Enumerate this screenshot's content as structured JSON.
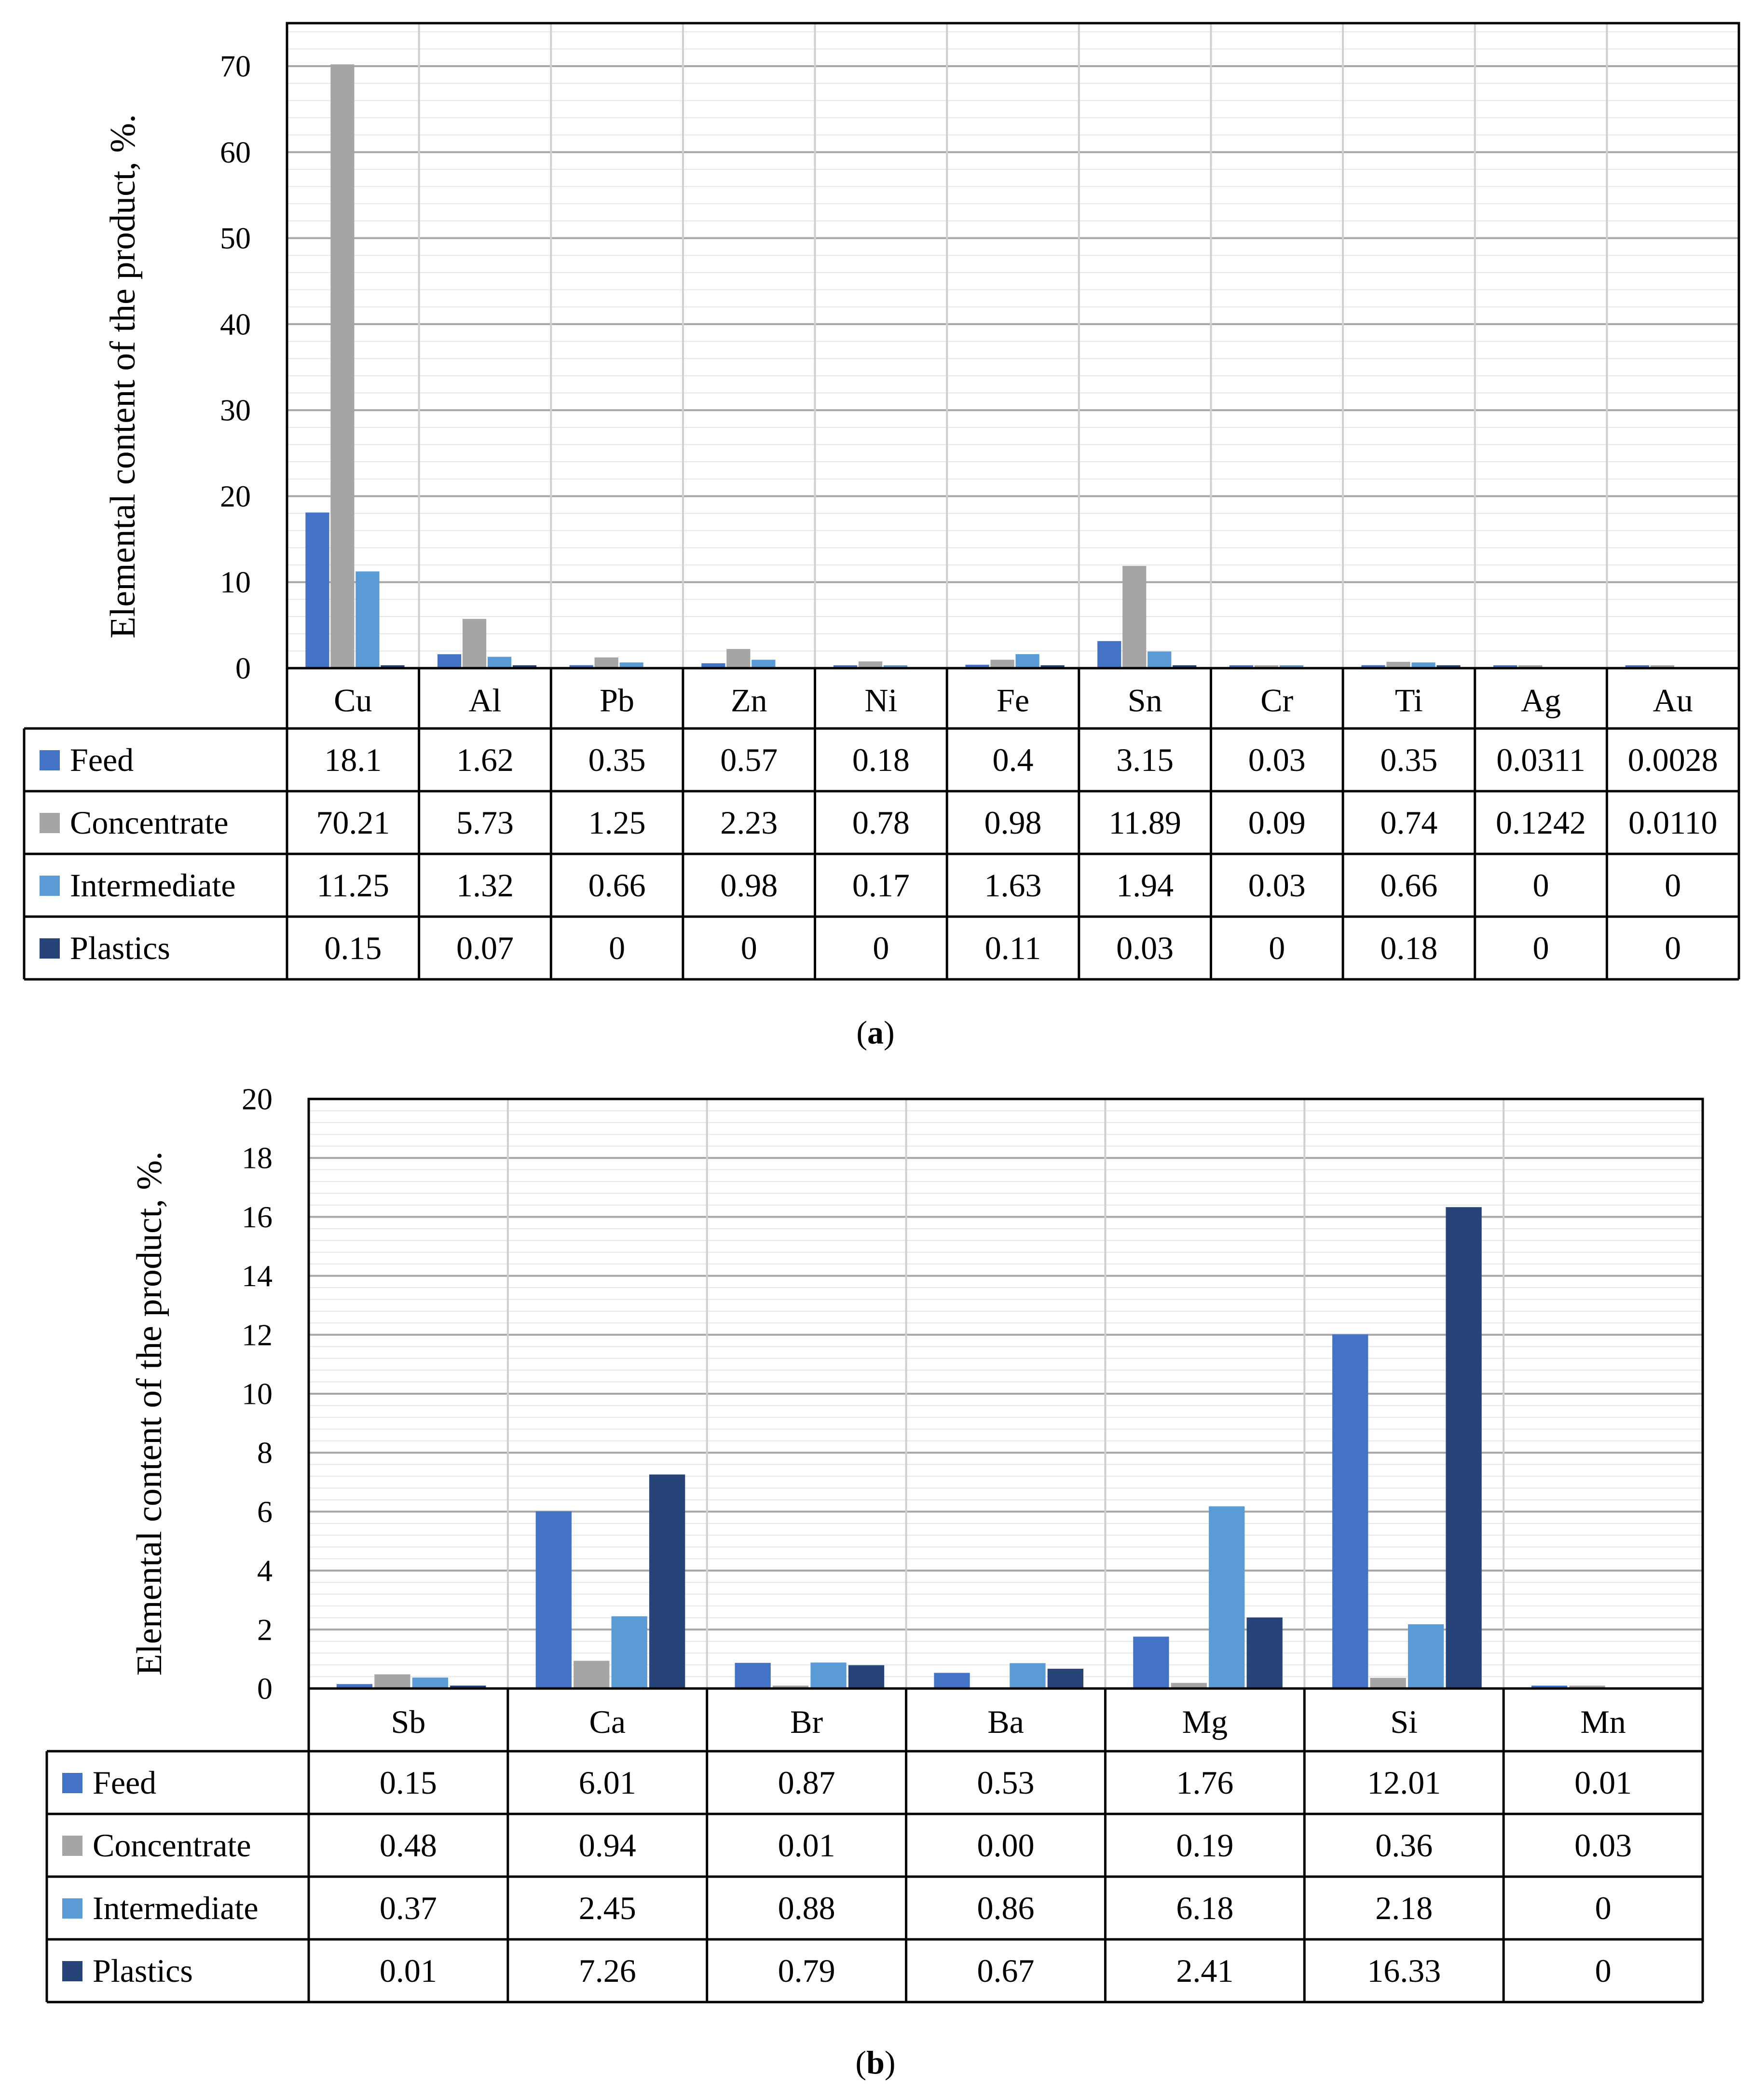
{
  "chart_data": [
    {
      "type": "bar",
      "caption_label": "a",
      "ylabel": "Elemental content of the product, %.",
      "ylim": [
        0,
        75
      ],
      "yticks": [
        0,
        10,
        20,
        30,
        40,
        50,
        60,
        70
      ],
      "grid": true,
      "legend": "data-table",
      "categories": [
        "Cu",
        "Al",
        "Pb",
        "Zn",
        "Ni",
        "Fe",
        "Sn",
        "Cr",
        "Ti",
        "Ag",
        "Au"
      ],
      "series": [
        {
          "name": "Feed",
          "color": "#4472C4",
          "values": [
            18.1,
            1.62,
            0.35,
            0.57,
            0.18,
            0.4,
            3.15,
            0.03,
            0.35,
            0.0311,
            0.0028
          ],
          "labels": [
            "18.1",
            "1.62",
            "0.35",
            "0.57",
            "0.18",
            "0.4",
            "3.15",
            "0.03",
            "0.35",
            "0.0311",
            "0.0028"
          ]
        },
        {
          "name": "Concentrate",
          "color": "#A5A5A5",
          "values": [
            70.21,
            5.73,
            1.25,
            2.23,
            0.78,
            0.98,
            11.89,
            0.09,
            0.74,
            0.1242,
            0.011
          ],
          "labels": [
            "70.21",
            "5.73",
            "1.25",
            "2.23",
            "0.78",
            "0.98",
            "11.89",
            "0.09",
            "0.74",
            "0.1242",
            "0.0110"
          ]
        },
        {
          "name": "Intermediate",
          "color": "#5B9BD5",
          "values": [
            11.25,
            1.32,
            0.66,
            0.98,
            0.17,
            1.63,
            1.94,
            0.03,
            0.66,
            0,
            0
          ],
          "labels": [
            "11.25",
            "1.32",
            "0.66",
            "0.98",
            "0.17",
            "1.63",
            "1.94",
            "0.03",
            "0.66",
            "0",
            "0"
          ]
        },
        {
          "name": "Plastics",
          "color": "#264478",
          "values": [
            0.15,
            0.07,
            0,
            0,
            0,
            0.11,
            0.03,
            0,
            0.18,
            0,
            0
          ],
          "labels": [
            "0.15",
            "0.07",
            "0",
            "0",
            "0",
            "0.11",
            "0.03",
            "0",
            "0.18",
            "0",
            "0"
          ]
        }
      ]
    },
    {
      "type": "bar",
      "caption_label": "b",
      "ylabel": "Elemental content of the product, %.",
      "ylim": [
        0,
        20
      ],
      "yticks": [
        0,
        2,
        4,
        6,
        8,
        10,
        12,
        14,
        16,
        18,
        20
      ],
      "grid": true,
      "legend": "data-table",
      "categories": [
        "Sb",
        "Ca",
        "Br",
        "Ba",
        "Mg",
        "Si",
        "Mn"
      ],
      "series": [
        {
          "name": "Feed",
          "color": "#4472C4",
          "values": [
            0.15,
            6.01,
            0.87,
            0.53,
            1.76,
            12.01,
            0.01
          ],
          "labels": [
            "0.15",
            "6.01",
            "0.87",
            "0.53",
            "1.76",
            "12.01",
            "0.01"
          ]
        },
        {
          "name": "Concentrate",
          "color": "#A5A5A5",
          "values": [
            0.48,
            0.94,
            0.01,
            0,
            0.19,
            0.36,
            0.03
          ],
          "labels": [
            "0.48",
            "0.94",
            "0.01",
            "0.00",
            "0.19",
            "0.36",
            "0.03"
          ]
        },
        {
          "name": "Intermediate",
          "color": "#5B9BD5",
          "values": [
            0.37,
            2.45,
            0.88,
            0.86,
            6.18,
            2.18,
            0
          ],
          "labels": [
            "0.37",
            "2.45",
            "0.88",
            "0.86",
            "6.18",
            "2.18",
            "0"
          ]
        },
        {
          "name": "Plastics",
          "color": "#264478",
          "values": [
            0.01,
            7.26,
            0.79,
            0.67,
            2.41,
            16.33,
            0
          ],
          "labels": [
            "0.01",
            "7.26",
            "0.79",
            "0.67",
            "2.41",
            "16.33",
            "0"
          ]
        }
      ]
    }
  ]
}
